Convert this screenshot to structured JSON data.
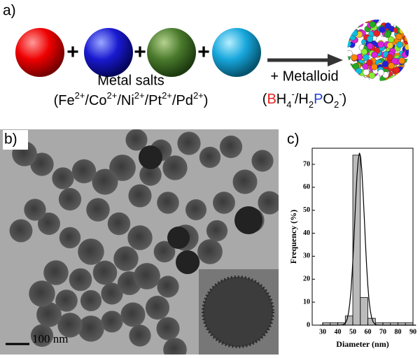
{
  "panels": {
    "a": "a)",
    "b": "b)",
    "c": "c)"
  },
  "scheme": {
    "plus": [
      "+",
      "+",
      "+"
    ],
    "salts_label": "Metal salts",
    "salts_formula": [
      {
        "text": "(Fe"
      },
      {
        "text": "2+",
        "style": "sup"
      },
      {
        "text": "/Co"
      },
      {
        "text": "2+",
        "style": "sup"
      },
      {
        "text": "/Ni"
      },
      {
        "text": "2+",
        "style": "sup"
      },
      {
        "text": "/Pt"
      },
      {
        "text": "2+",
        "style": "sup"
      },
      {
        "text": "/Pd"
      },
      {
        "text": "2+",
        "style": "sup"
      },
      {
        "text": ")"
      }
    ],
    "metalloid_label": "+ Metalloid",
    "metalloid_formula": [
      {
        "text": "("
      },
      {
        "text": "B",
        "color": "#e8231e"
      },
      {
        "text": "H"
      },
      {
        "text": "4",
        "style": "sub"
      },
      {
        "text": "-",
        "style": "sup"
      },
      {
        "text": "/H"
      },
      {
        "text": "2",
        "style": "sub"
      },
      {
        "text": "P",
        "color": "#1f3fd6"
      },
      {
        "text": "O"
      },
      {
        "text": "2",
        "style": "sub"
      },
      {
        "text": "-",
        "style": "sup"
      },
      {
        "text": ")"
      }
    ]
  },
  "tem": {
    "scale_bar": "100 nm"
  },
  "chart_data": {
    "type": "histogram",
    "xlabel": "Diameter (nm)",
    "ylabel": "Frequency (%)",
    "bins": [
      25,
      30,
      35,
      40,
      45,
      50,
      55,
      60,
      65,
      70,
      75,
      80,
      85,
      90
    ],
    "values": [
      0,
      1,
      1,
      1,
      4,
      74,
      12,
      3,
      1,
      1,
      1,
      1,
      1
    ],
    "xlim": [
      23,
      90
    ],
    "xticks": [
      30,
      40,
      50,
      60,
      70,
      80,
      90
    ],
    "ylim": [
      0,
      77
    ],
    "yticks": [
      0,
      10,
      20,
      30,
      40,
      50,
      60,
      70
    ]
  }
}
